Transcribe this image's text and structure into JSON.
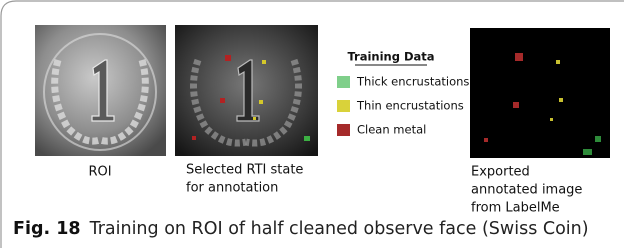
{
  "figure": {
    "panels": [
      {
        "caption": [
          "ROI"
        ]
      },
      {
        "caption": [
          "Selected RTI state",
          "for annotation"
        ]
      },
      {
        "caption": [
          "Exported",
          "annotated image",
          "from LabelMe"
        ]
      }
    ],
    "legend": {
      "title": "Training Data",
      "items": [
        "Thick encrustations",
        "Thin encrustations",
        "Clean metal"
      ]
    },
    "caption": {
      "label": "Fig. 18",
      "text": "Training on ROI of half cleaned observe face (Swiss Coin)"
    }
  }
}
